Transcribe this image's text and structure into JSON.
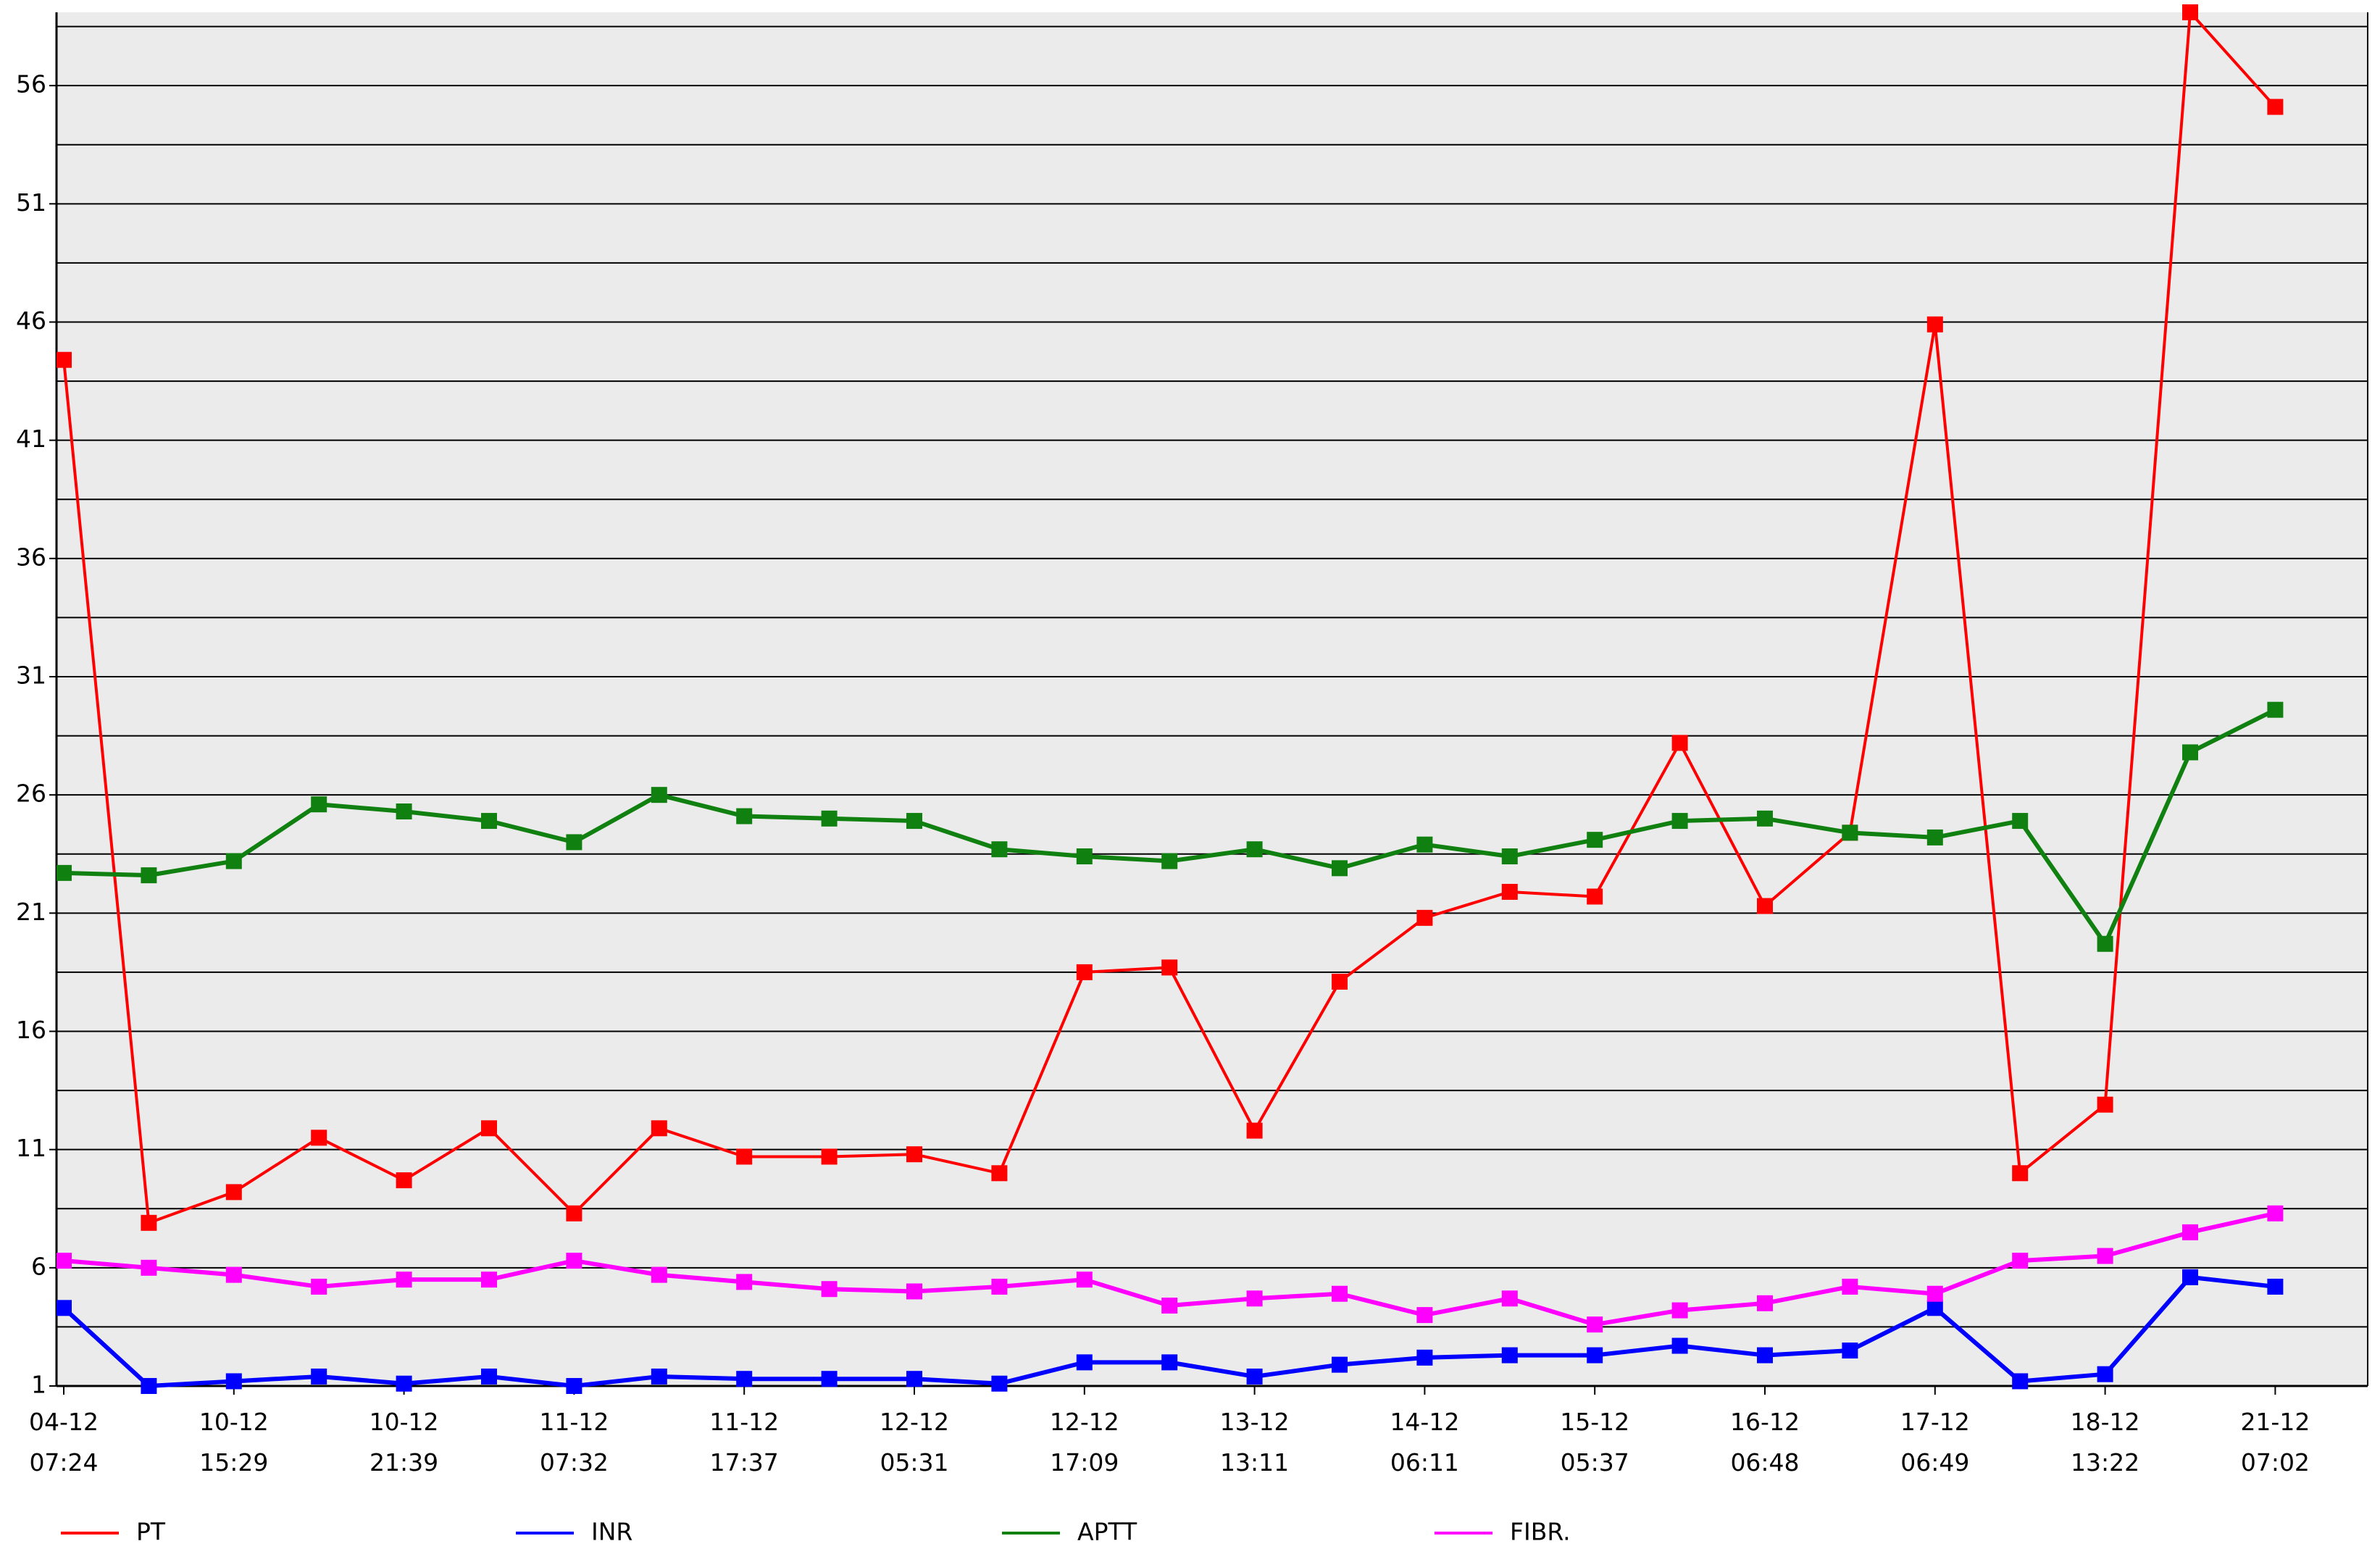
{
  "chart_data": {
    "type": "line",
    "categories": [
      "04-12\n07:24",
      null,
      "10-12\n15:29",
      null,
      "10-12\n21:39",
      null,
      "11-12\n07:32",
      null,
      "11-12\n17:37",
      null,
      "12-12\n05:31",
      null,
      "12-12\n17:09",
      null,
      "13-12\n13:11",
      null,
      "14-12\n06:11",
      null,
      "15-12\n05:37",
      null,
      "16-12\n06:48",
      null,
      "17-12\n06:49",
      null,
      "18-12\n13:22",
      null,
      "21-12\n07:02"
    ],
    "series": [
      {
        "name": "PT",
        "color": "#ff0000",
        "values": [
          44.4,
          7.9,
          9.2,
          11.5,
          9.7,
          11.9,
          8.3,
          11.9,
          10.7,
          10.7,
          10.8,
          10.0,
          18.5,
          18.7,
          11.8,
          18.1,
          20.8,
          21.9,
          21.7,
          28.2,
          21.3,
          24.4,
          45.9,
          10.0,
          12.9,
          59.1,
          55.1
        ]
      },
      {
        "name": "INR",
        "color": "#0000ff",
        "values": [
          4.3,
          1.0,
          1.2,
          1.4,
          1.1,
          1.4,
          1.0,
          1.4,
          1.3,
          1.3,
          1.3,
          1.1,
          2.0,
          2.0,
          1.4,
          1.9,
          2.2,
          2.3,
          2.3,
          2.7,
          2.3,
          2.5,
          4.3,
          1.2,
          1.5,
          5.6,
          5.2
        ]
      },
      {
        "name": "APTT",
        "color": "#108010",
        "values": [
          22.7,
          22.6,
          23.2,
          25.6,
          25.3,
          24.9,
          24.0,
          26.0,
          25.1,
          25.0,
          24.9,
          23.7,
          23.4,
          23.2,
          23.7,
          22.9,
          23.9,
          23.4,
          24.1,
          24.9,
          25.0,
          24.4,
          24.2,
          24.9,
          19.7,
          27.8,
          29.6
        ]
      },
      {
        "name": "FIBR.",
        "color": "#ff00ff",
        "values": [
          6.3,
          6.0,
          5.7,
          5.2,
          5.5,
          5.5,
          6.3,
          5.7,
          5.4,
          5.1,
          5.0,
          5.2,
          5.5,
          4.4,
          4.7,
          4.9,
          4.0,
          4.7,
          3.6,
          4.2,
          4.5,
          5.2,
          4.9,
          6.3,
          6.5,
          7.5,
          8.3
        ]
      }
    ],
    "ylim": [
      1,
      59.1
    ],
    "yticks": [
      1,
      6,
      11,
      16,
      21,
      26,
      31,
      36,
      41,
      46,
      51,
      56
    ],
    "minor_yticks": [
      3.5,
      8.5,
      13.5,
      18.5,
      23.5,
      28.5,
      33.5,
      38.5,
      43.5,
      48.5,
      53.5,
      58.5
    ],
    "grid": true
  }
}
